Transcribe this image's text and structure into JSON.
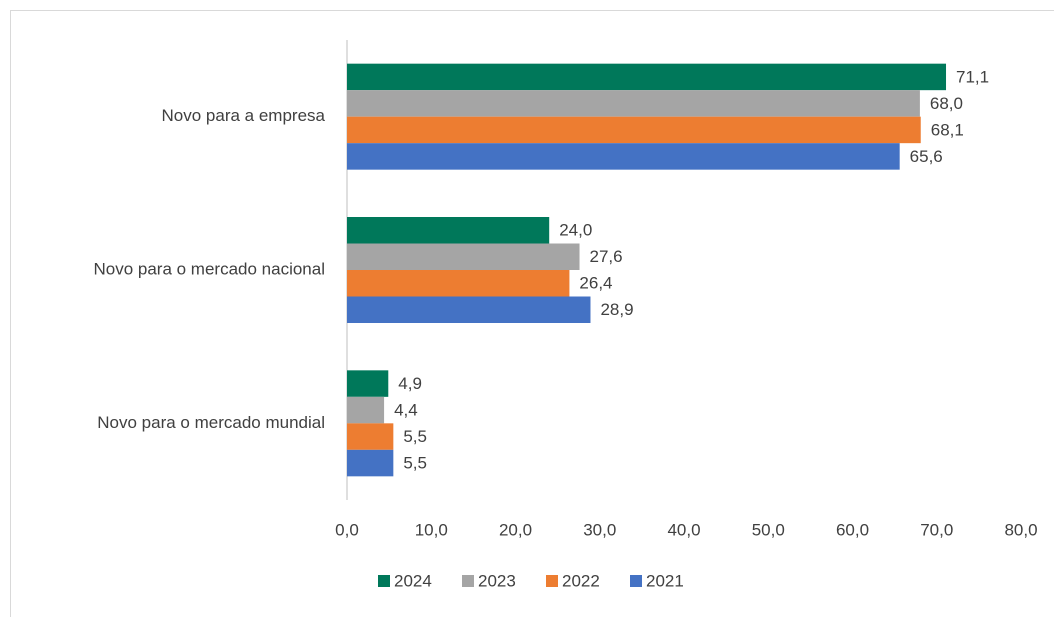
{
  "chart_data": {
    "type": "bar",
    "orientation": "horizontal",
    "categories": [
      "Novo para a empresa",
      "Novo para o mercado nacional",
      "Novo para o mercado mundial"
    ],
    "series": [
      {
        "name": "2024",
        "color": "#00785a",
        "values": [
          71.1,
          24.0,
          4.9
        ],
        "value_labels": [
          "71,1",
          "24,0",
          "4,9"
        ]
      },
      {
        "name": "2023",
        "color": "#a5a5a5",
        "values": [
          68.0,
          27.6,
          4.4
        ],
        "value_labels": [
          "68,0",
          "27,6",
          "4,4"
        ]
      },
      {
        "name": "2022",
        "color": "#ed7d31",
        "values": [
          68.1,
          26.4,
          5.5
        ],
        "value_labels": [
          "68,1",
          "26,4",
          "5,5"
        ]
      },
      {
        "name": "2021",
        "color": "#4472c4",
        "values": [
          65.6,
          28.9,
          5.5
        ],
        "value_labels": [
          "65,6",
          "28,9",
          "5,5"
        ]
      }
    ],
    "xlim": [
      0,
      80
    ],
    "xticks": [
      {
        "value": 0,
        "label": "0,0"
      },
      {
        "value": 10,
        "label": "10,0"
      },
      {
        "value": 20,
        "label": "20,0"
      },
      {
        "value": 30,
        "label": "30,0"
      },
      {
        "value": 40,
        "label": "40,0"
      },
      {
        "value": 50,
        "label": "50,0"
      },
      {
        "value": 60,
        "label": "60,0"
      },
      {
        "value": 70,
        "label": "70,0"
      },
      {
        "value": 80,
        "label": "80,0"
      }
    ],
    "grid": false,
    "legend": "bottom"
  }
}
